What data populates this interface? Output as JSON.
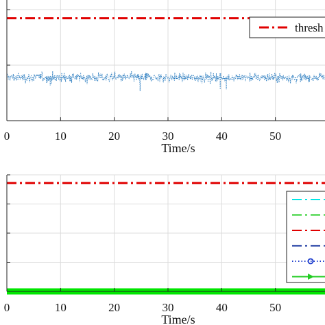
{
  "chart_data": [
    {
      "type": "line",
      "title": "",
      "xlabel": "Time/s",
      "ylabel": "",
      "xlim": [
        0,
        60
      ],
      "x_ticks": [
        0,
        10,
        20,
        30,
        40,
        50
      ],
      "x_tick_labels": [
        "0",
        "10",
        "20",
        "30",
        "40",
        "50"
      ],
      "grid": true,
      "legend_position": "top-right",
      "series": [
        {
          "name": "thresh",
          "style": "dash-dot",
          "color": "#e00000",
          "x": [
            0,
            60
          ],
          "y": [
            0.83,
            0.83
          ]
        },
        {
          "name": "",
          "style": "dotted-noise",
          "color": "#2f7fc1",
          "mean": 0.35,
          "spread": 0.07,
          "x_range": [
            0,
            60
          ]
        }
      ]
    },
    {
      "type": "line",
      "title": "",
      "xlabel": "Time/s",
      "ylabel": "",
      "xlim": [
        0,
        60
      ],
      "x_ticks": [
        0,
        10,
        20,
        30,
        40,
        50
      ],
      "x_tick_labels": [
        "0",
        "10",
        "20",
        "30",
        "40",
        "50"
      ],
      "grid": true,
      "legend_position": "right",
      "series": [
        {
          "name": "",
          "style": "dash-dot",
          "color": "#e00000",
          "x": [
            0,
            60
          ],
          "y": [
            0.93,
            0.93
          ]
        },
        {
          "name": "",
          "style": "solid-thick",
          "color": "#00e600",
          "x": [
            0,
            60
          ],
          "y": [
            0.0,
            0.0
          ]
        }
      ],
      "legend_swatches": [
        {
          "style": "dash-dot",
          "color": "#00e6e6"
        },
        {
          "style": "dash-dot",
          "color": "#22cc22"
        },
        {
          "style": "dash-dot",
          "color": "#e00000"
        },
        {
          "style": "dash-dot",
          "color": "#0a2a9a"
        },
        {
          "style": "dotted-circle",
          "color": "#1a3acc"
        },
        {
          "style": "solid-triangle",
          "color": "#22cc22"
        }
      ]
    }
  ]
}
